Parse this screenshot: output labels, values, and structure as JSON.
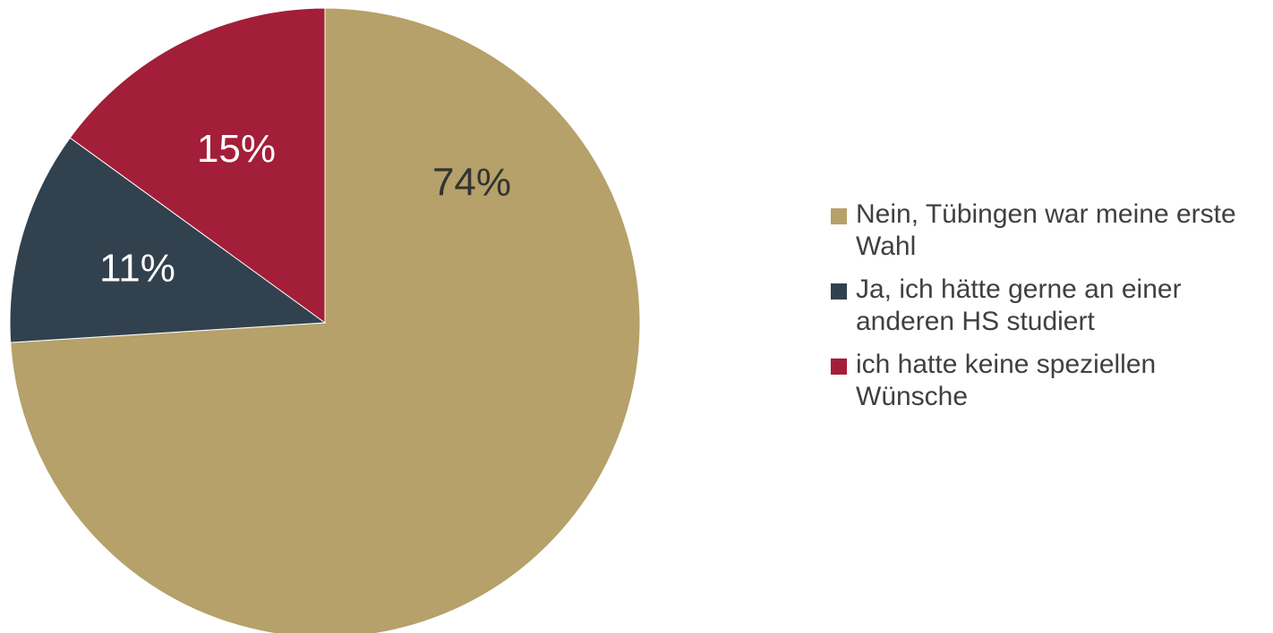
{
  "chart_data": {
    "type": "pie",
    "title": "",
    "legend_position": "right",
    "start": "top, clockwise",
    "slices": [
      {
        "label": "Nein, Tübingen war meine erste Wahl",
        "value": 74,
        "display": "74%",
        "color": "#B5A169",
        "label_color": "#333333"
      },
      {
        "label": "Ja, ich hätte gerne an einer anderen HS studiert",
        "value": 11,
        "display": "11%",
        "color": "#32414E",
        "label_color": "#FFFFFF"
      },
      {
        "label": "ich hatte keine speziellen Wünsche",
        "value": 15,
        "display": "15%",
        "color": "#A31E39",
        "label_color": "#FFFFFF"
      }
    ]
  }
}
